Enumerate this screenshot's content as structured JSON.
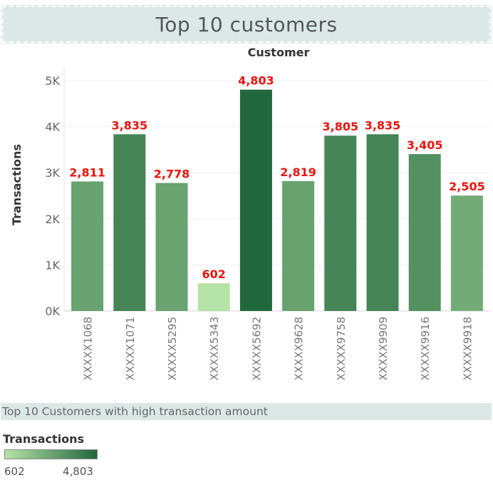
{
  "header": {
    "title": "Top 10 customers"
  },
  "chart_data": {
    "type": "bar",
    "title": "Top 10 customers",
    "xlabel": "Customer",
    "ylabel": "Transactions",
    "categories": [
      "XXXXX1068",
      "XXXXX1071",
      "XXXXX5295",
      "XXXXX5343",
      "XXXXX5692",
      "XXXXX9628",
      "XXXXX9758",
      "XXXXX9909",
      "XXXXX9916",
      "XXXXX9918"
    ],
    "values": [
      2811,
      3835,
      2778,
      602,
      4803,
      2819,
      3805,
      3835,
      3405,
      2505
    ],
    "value_labels": [
      "2,811",
      "3,835",
      "2,778",
      "602",
      "4,803",
      "2,819",
      "3,805",
      "3,835",
      "3,405",
      "2,505"
    ],
    "y_ticks": [
      0,
      1000,
      2000,
      3000,
      4000,
      5000
    ],
    "y_tick_labels": [
      "0K",
      "1K",
      "2K",
      "3K",
      "4K",
      "5K"
    ],
    "ylim": [
      0,
      5300
    ],
    "grid": true,
    "color_scale": {
      "min": 602,
      "max": 4803,
      "min_color": "#b5e2a6",
      "max_color": "#22683d"
    },
    "label_color": "#e8140c"
  },
  "caption": {
    "text": "Top 10 Customers with high transaction amount"
  },
  "legend": {
    "title": "Transactions",
    "min_label": "602",
    "max_label": "4,803"
  }
}
